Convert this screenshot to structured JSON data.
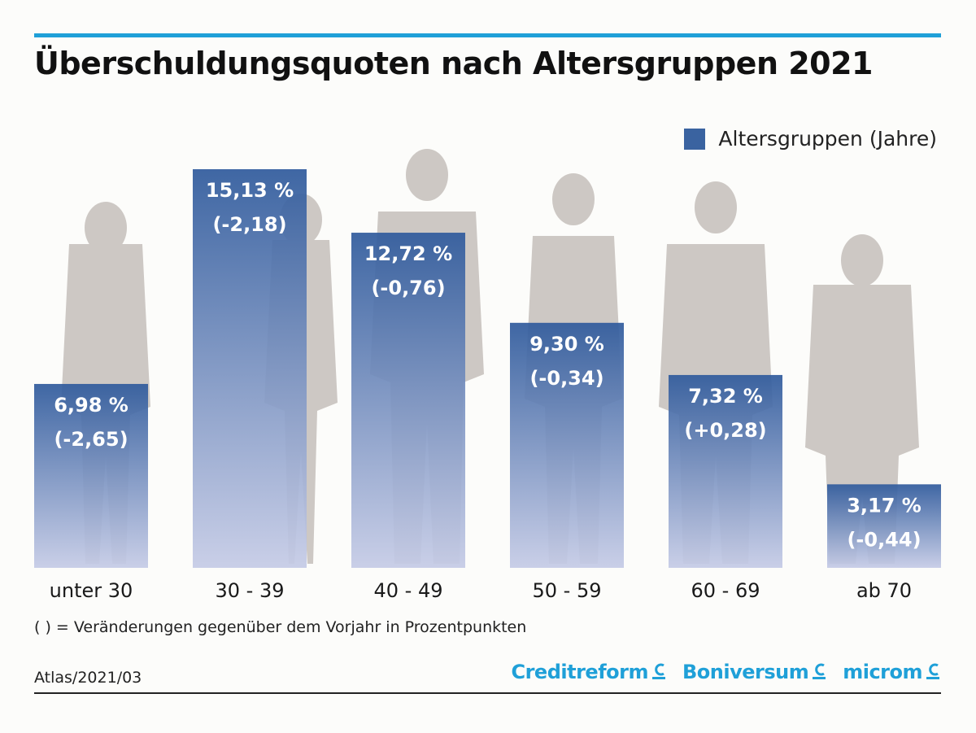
{
  "title": "Überschuldungsquoten nach Altersgruppen 2021",
  "legend": {
    "label": "Altersgruppen (Jahre)",
    "color": "#3a63a0"
  },
  "footnote": "( ) =  Veränderungen gegenüber dem Vorjahr in Prozentpunkten",
  "source": "Atlas/2021/03",
  "logos": [
    "Creditreform",
    "Boniversum",
    "microm"
  ],
  "colors": {
    "bar_top": "#2f5a9c",
    "bar_bottom": "#c5cbe6",
    "accent": "#1fa0d8",
    "silhouette": "#cdc8c4"
  },
  "chart_data": {
    "type": "bar",
    "categories": [
      "unter 30",
      "30 - 39",
      "40 - 49",
      "50 - 59",
      "60 - 69",
      "ab 70"
    ],
    "values": [
      6.98,
      15.13,
      12.72,
      9.3,
      7.32,
      3.17
    ],
    "value_labels": [
      "6,98 %",
      "15,13 %",
      "12,72 %",
      "9,30 %",
      "7,32 %",
      "3,17 %"
    ],
    "changes": [
      -2.65,
      -2.18,
      -0.76,
      -0.34,
      0.28,
      -0.44
    ],
    "change_labels": [
      "(-2,65)",
      "(-2,18)",
      "(-0,76)",
      "(-0,34)",
      "(+0,28)",
      "(-0,44)"
    ],
    "series": [
      {
        "name": "Altersgruppen (Jahre)",
        "values": [
          6.98,
          15.13,
          12.72,
          9.3,
          7.32,
          3.17
        ]
      }
    ],
    "ylim": [
      0,
      15.13
    ],
    "grid": false,
    "legend_position": "top-right"
  }
}
